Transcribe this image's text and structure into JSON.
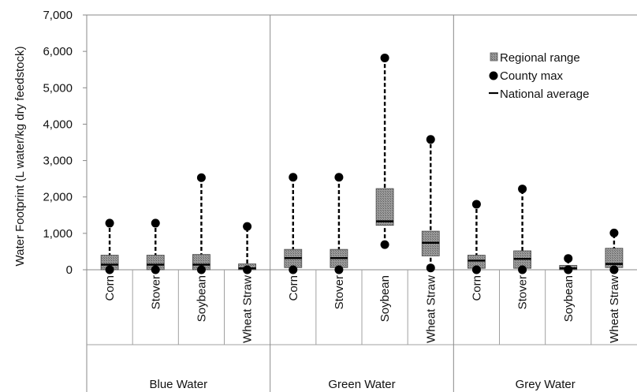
{
  "chart_data": {
    "type": "box",
    "ylabel": "Water Footprint (L water/kg dry feedstock)",
    "ylim": [
      0,
      7000
    ],
    "yticks": [
      0,
      1000,
      2000,
      3000,
      4000,
      5000,
      6000,
      7000
    ],
    "ytick_labels": [
      "0",
      "1,000",
      "2,000",
      "3,000",
      "4,000",
      "5,000",
      "6,000",
      "7,000"
    ],
    "grid": false,
    "legend_position": "top-right",
    "legend": [
      {
        "key": "range",
        "label": "Regional range"
      },
      {
        "key": "max",
        "label": "County max"
      },
      {
        "key": "avg",
        "label": "National average"
      }
    ],
    "groups": [
      {
        "name": "Blue Water",
        "items": [
          {
            "category": "Corn",
            "range": [
              0,
              400
            ],
            "min": 0,
            "max": 1280,
            "avg": 140
          },
          {
            "category": "Stover",
            "range": [
              0,
              400
            ],
            "min": 0,
            "max": 1280,
            "avg": 140
          },
          {
            "category": "Soybean",
            "range": [
              0,
              420
            ],
            "min": 0,
            "max": 2530,
            "avg": 140
          },
          {
            "category": "Wheat Straw",
            "range": [
              0,
              160
            ],
            "min": 0,
            "max": 1190,
            "avg": 40
          }
        ]
      },
      {
        "name": "Green Water",
        "items": [
          {
            "category": "Corn",
            "range": [
              60,
              560
            ],
            "min": 0,
            "max": 2540,
            "avg": 320
          },
          {
            "category": "Stover",
            "range": [
              60,
              560
            ],
            "min": 0,
            "max": 2540,
            "avg": 320
          },
          {
            "category": "Soybean",
            "range": [
              1220,
              2230
            ],
            "min": 690,
            "max": 5820,
            "avg": 1330
          },
          {
            "category": "Wheat Straw",
            "range": [
              380,
              1060
            ],
            "min": 50,
            "max": 3580,
            "avg": 740
          }
        ]
      },
      {
        "name": "Grey Water",
        "items": [
          {
            "category": "Corn",
            "range": [
              40,
              400
            ],
            "min": 0,
            "max": 1800,
            "avg": 250
          },
          {
            "category": "Stover",
            "range": [
              40,
              520
            ],
            "min": 0,
            "max": 2220,
            "avg": 300
          },
          {
            "category": "Soybean",
            "range": [
              0,
              120
            ],
            "min": 0,
            "max": 310,
            "avg": 40
          },
          {
            "category": "Wheat Straw",
            "range": [
              60,
              590
            ],
            "min": 0,
            "max": 1010,
            "avg": 160
          }
        ]
      }
    ]
  }
}
